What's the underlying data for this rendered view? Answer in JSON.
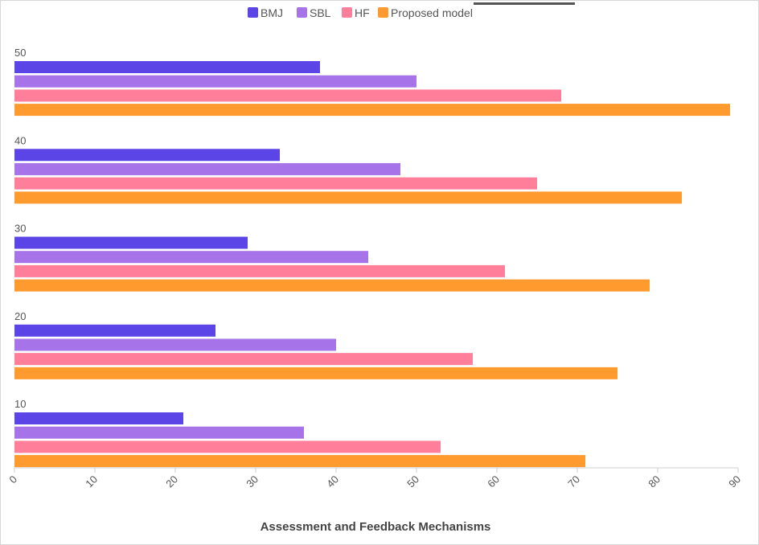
{
  "chart_data": {
    "type": "bar",
    "orientation": "horizontal",
    "categories": [
      "10",
      "20",
      "30",
      "40",
      "50"
    ],
    "series": [
      {
        "name": "BMJ",
        "color": "#5b45e6",
        "values": [
          21,
          25,
          29,
          33,
          38
        ]
      },
      {
        "name": "SBL",
        "color": "#a673e8",
        "values": [
          36,
          40,
          44,
          48,
          50
        ]
      },
      {
        "name": "HF",
        "color": "#ff7f9a",
        "values": [
          53,
          57,
          61,
          65,
          68
        ]
      },
      {
        "name": "Proposed model",
        "color": "#ff9a2e",
        "values": [
          71,
          75,
          79,
          83,
          89
        ]
      }
    ],
    "title": "",
    "xlabel": "Assessment and Feedback Mechanisms",
    "ylabel": "",
    "xlim": [
      0,
      90
    ],
    "xticks": [
      "0",
      "10",
      "20",
      "30",
      "40",
      "50",
      "60",
      "70",
      "80",
      "90"
    ],
    "grid": false,
    "legend_position": "top-center"
  }
}
